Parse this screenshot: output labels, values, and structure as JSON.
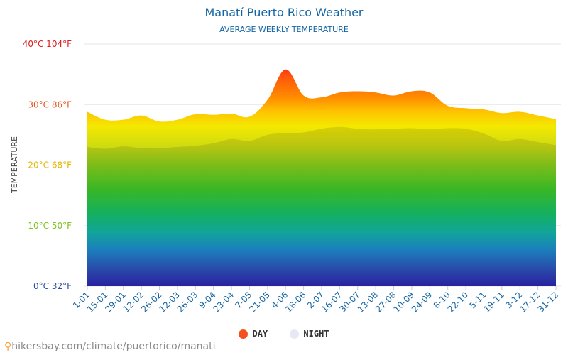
{
  "title": "Manatí Puerto Rico Weather",
  "subtitle": "AVERAGE WEEKLY TEMPERATURE",
  "footer": "hikersbay.com/climate/puertorico/manati",
  "chart_data": {
    "type": "area",
    "ylabel": "TEMPERATURE",
    "ylim": [
      0,
      40
    ],
    "y_ticks": [
      {
        "value": 0,
        "label": "0°C 32°F",
        "color": "#2a4fa0"
      },
      {
        "value": 10,
        "label": "10°C 50°F",
        "color": "#7dc21e"
      },
      {
        "value": 20,
        "label": "20°C 68°F",
        "color": "#e8b400"
      },
      {
        "value": 30,
        "label": "30°C 86°F",
        "color": "#e8541a"
      },
      {
        "value": 40,
        "label": "40°C 104°F",
        "color": "#e01a1a"
      }
    ],
    "categories": [
      "1-01",
      "15-01",
      "29-01",
      "12-02",
      "26-02",
      "12-03",
      "26-03",
      "9-04",
      "23-04",
      "7-05",
      "21-05",
      "4-06",
      "18-06",
      "2-07",
      "16-07",
      "30-07",
      "13-08",
      "27-08",
      "10-09",
      "24-09",
      "8-10",
      "22-10",
      "5-11",
      "19-11",
      "3-12",
      "17-12",
      "31-12"
    ],
    "series": [
      {
        "name": "DAY",
        "color": "#f4511e",
        "values": [
          28.8,
          27.5,
          27.5,
          28.2,
          27.2,
          27.5,
          28.4,
          28.3,
          28.5,
          28.0,
          30.8,
          35.8,
          31.5,
          31.2,
          32.0,
          32.2,
          32.0,
          31.5,
          32.2,
          32.0,
          29.8,
          29.4,
          29.2,
          28.6,
          28.8,
          28.2,
          27.6
        ]
      },
      {
        "name": "NIGHT",
        "color": "#e4e9f2",
        "values": [
          23.0,
          22.7,
          23.1,
          22.8,
          22.8,
          23.0,
          23.2,
          23.6,
          24.3,
          24.0,
          25.0,
          25.3,
          25.4,
          26.0,
          26.3,
          26.0,
          25.9,
          26.0,
          26.1,
          25.9,
          26.1,
          26.0,
          25.2,
          24.0,
          24.3,
          23.8,
          23.3
        ]
      }
    ],
    "legend_position": "bottom-center",
    "grid": true
  }
}
